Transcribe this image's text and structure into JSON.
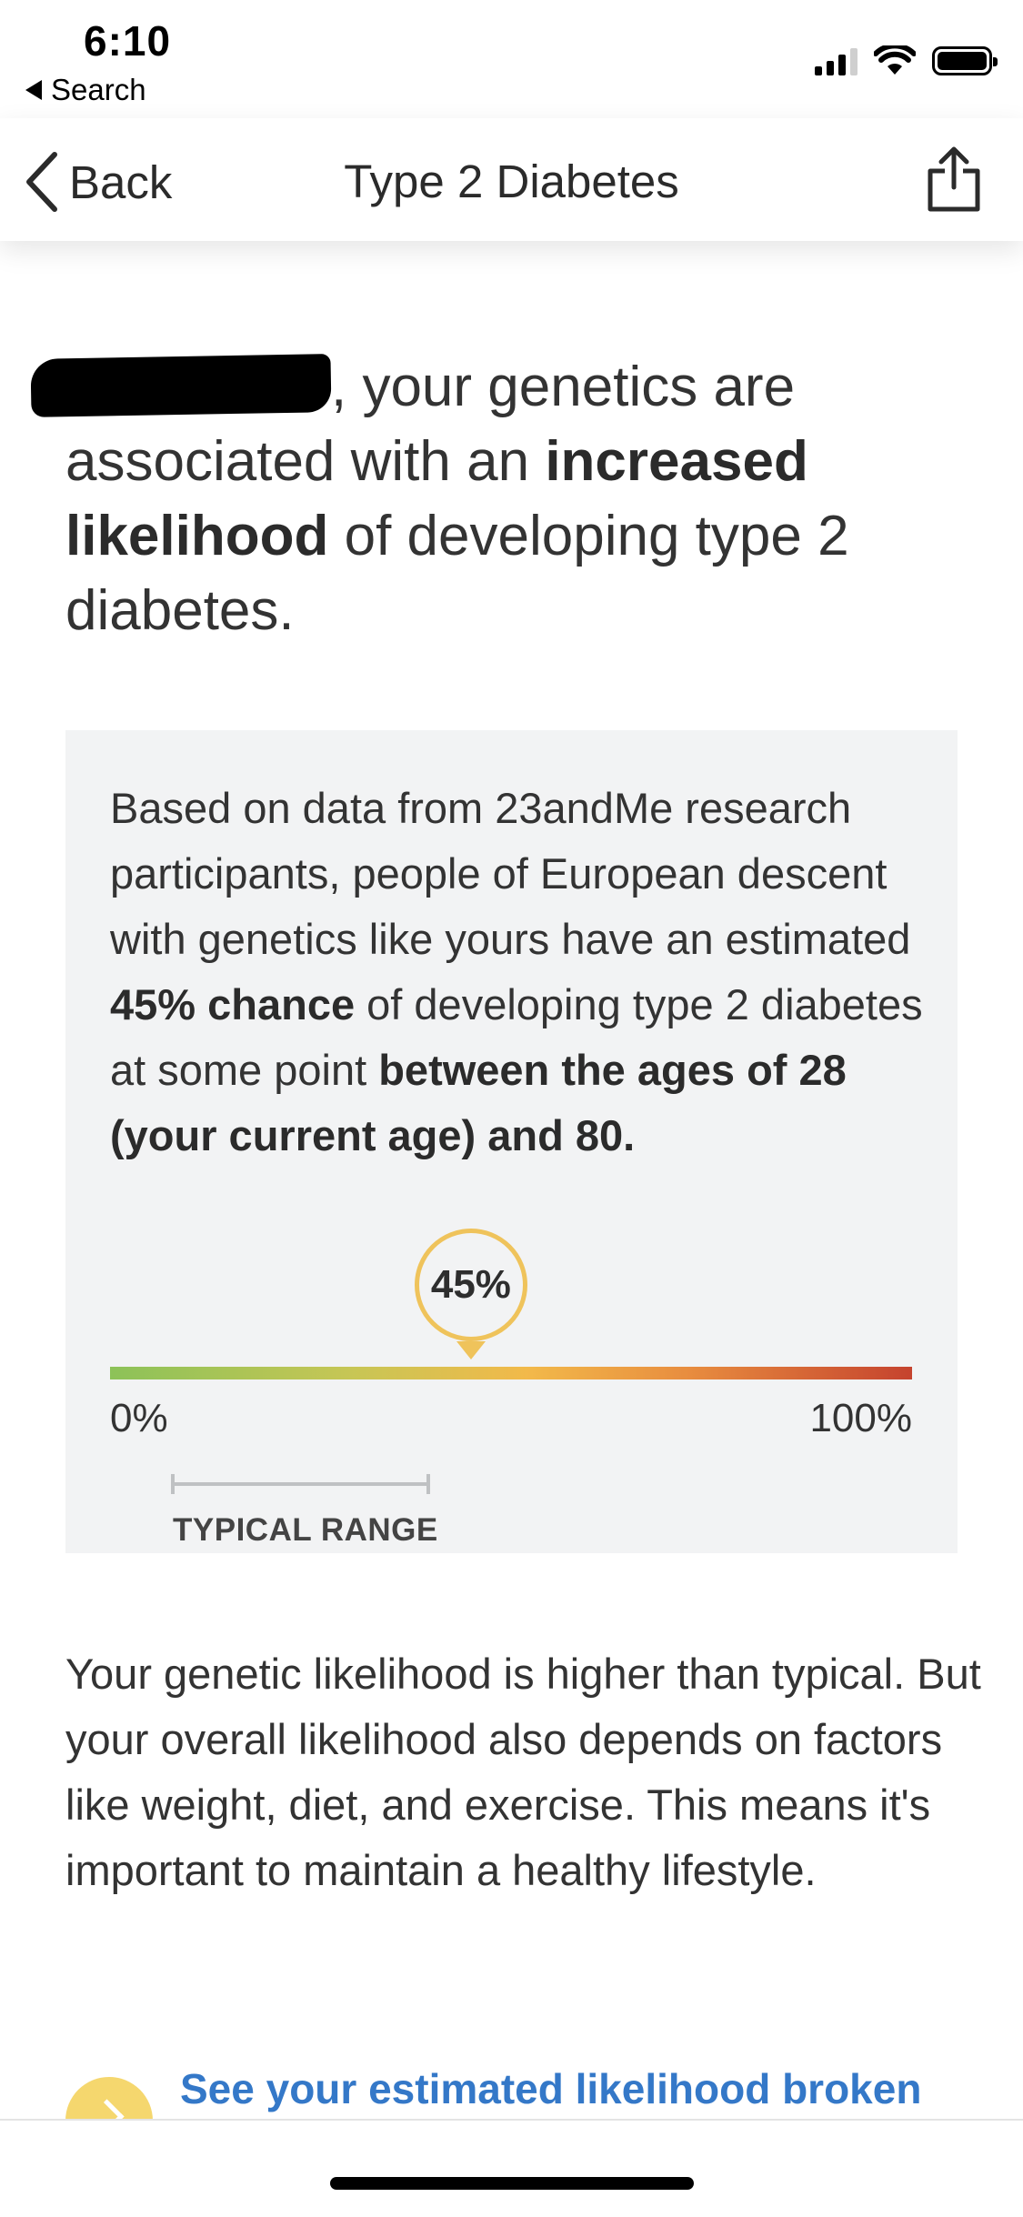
{
  "status_bar": {
    "time": "6:10",
    "back_to_app": "Search",
    "icons": [
      "signal-icon",
      "wifi-icon",
      "battery-icon"
    ]
  },
  "nav": {
    "back_label": "Back",
    "title": "Type 2 Diabetes",
    "share_icon": "share-icon"
  },
  "intro": {
    "part1": ", your genetics are associated with an ",
    "bold1": "increased likelihood",
    "part2": " of developing type 2 diabetes."
  },
  "info": {
    "t1": "Based on data from 23andMe research participants, people of European descent with genetics like yours have an estimated ",
    "b1": "45% chance",
    "t2": " of developing type 2 diabetes at some point ",
    "b2": "between the ages of 28 (your current age) and 80."
  },
  "scale": {
    "value_label": "45%",
    "value_fraction": 0.45,
    "min_label": "0%",
    "max_label": "100%",
    "typical_range_label": "TYPICAL RANGE",
    "colors": [
      "#8cc258",
      "#f2b94a",
      "#c5432e"
    ]
  },
  "explain": {
    "text": "Your genetic likelihood is higher than typical. But your overall likelihood also depends on factors like weight, diet, and exercise. This means it's important to maintain a healthy lifestyle."
  },
  "cta": {
    "label": "See your estimated likelihood broken"
  }
}
